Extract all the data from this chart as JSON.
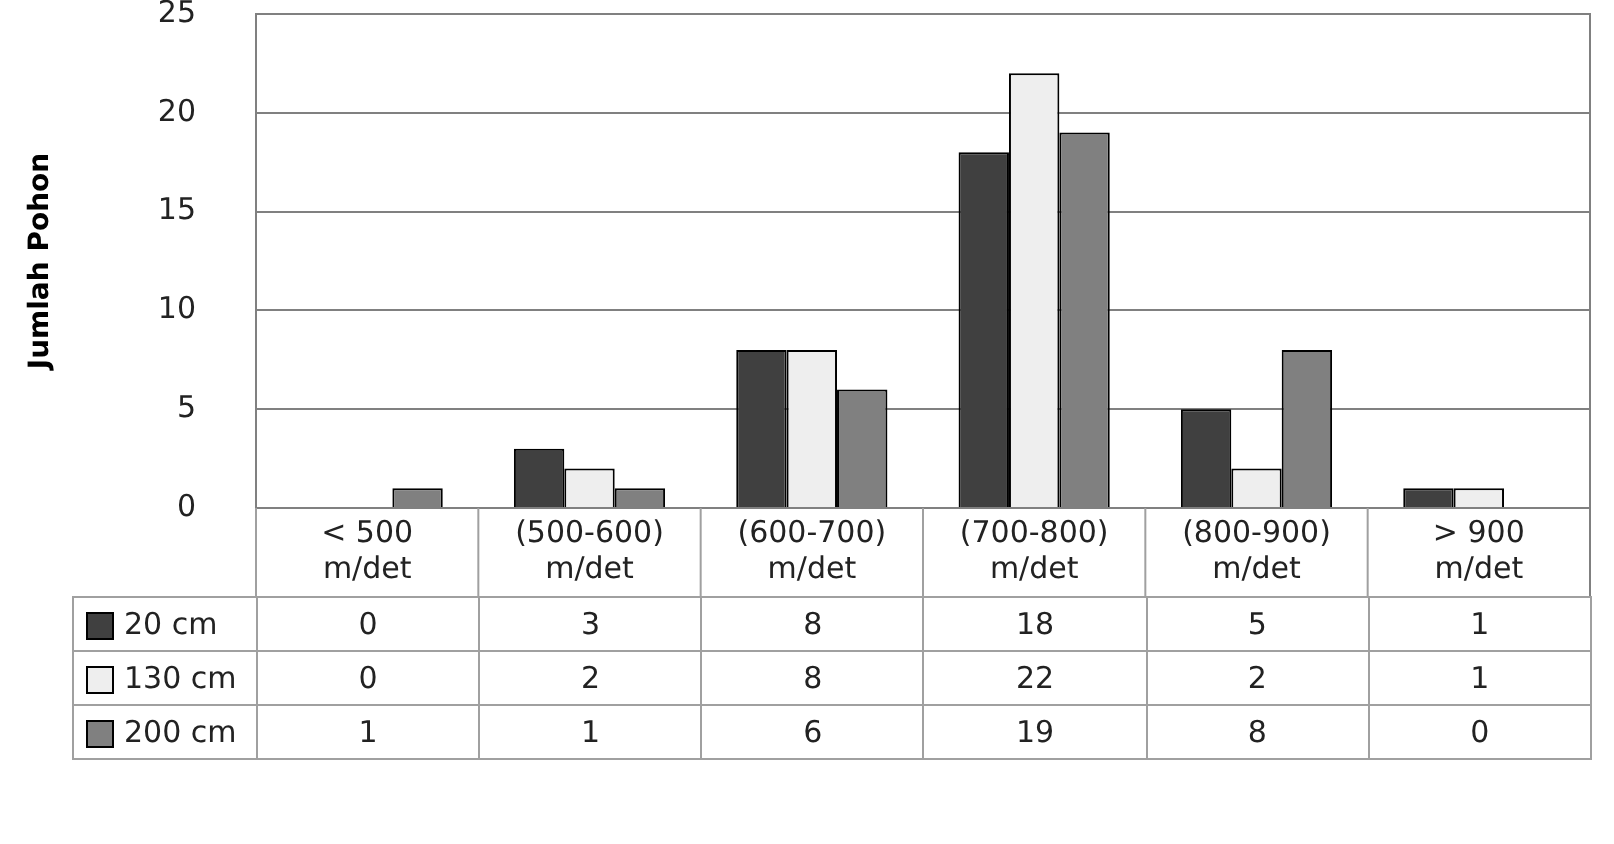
{
  "chart_data": {
    "type": "bar",
    "ylabel": "Jumlah Pohon",
    "categories": [
      "< 500 m/det",
      "(500-600) m/det",
      "(600-700) m/det",
      "(700-800) m/det",
      "(800-900) m/det",
      "> 900 m/det"
    ],
    "series": [
      {
        "name": "20 cm",
        "color": "#404040",
        "values": [
          0,
          3,
          8,
          18,
          5,
          1
        ]
      },
      {
        "name": "130 cm",
        "color": "#eeeeee",
        "values": [
          0,
          2,
          8,
          22,
          2,
          1
        ]
      },
      {
        "name": "200 cm",
        "color": "#808080",
        "values": [
          1,
          1,
          6,
          19,
          8,
          0
        ]
      }
    ],
    "ylim": [
      0,
      25
    ],
    "yticks": [
      0,
      5,
      10,
      15,
      20,
      25
    ],
    "grid": "y",
    "legend": "bottom",
    "data_labels": true
  }
}
